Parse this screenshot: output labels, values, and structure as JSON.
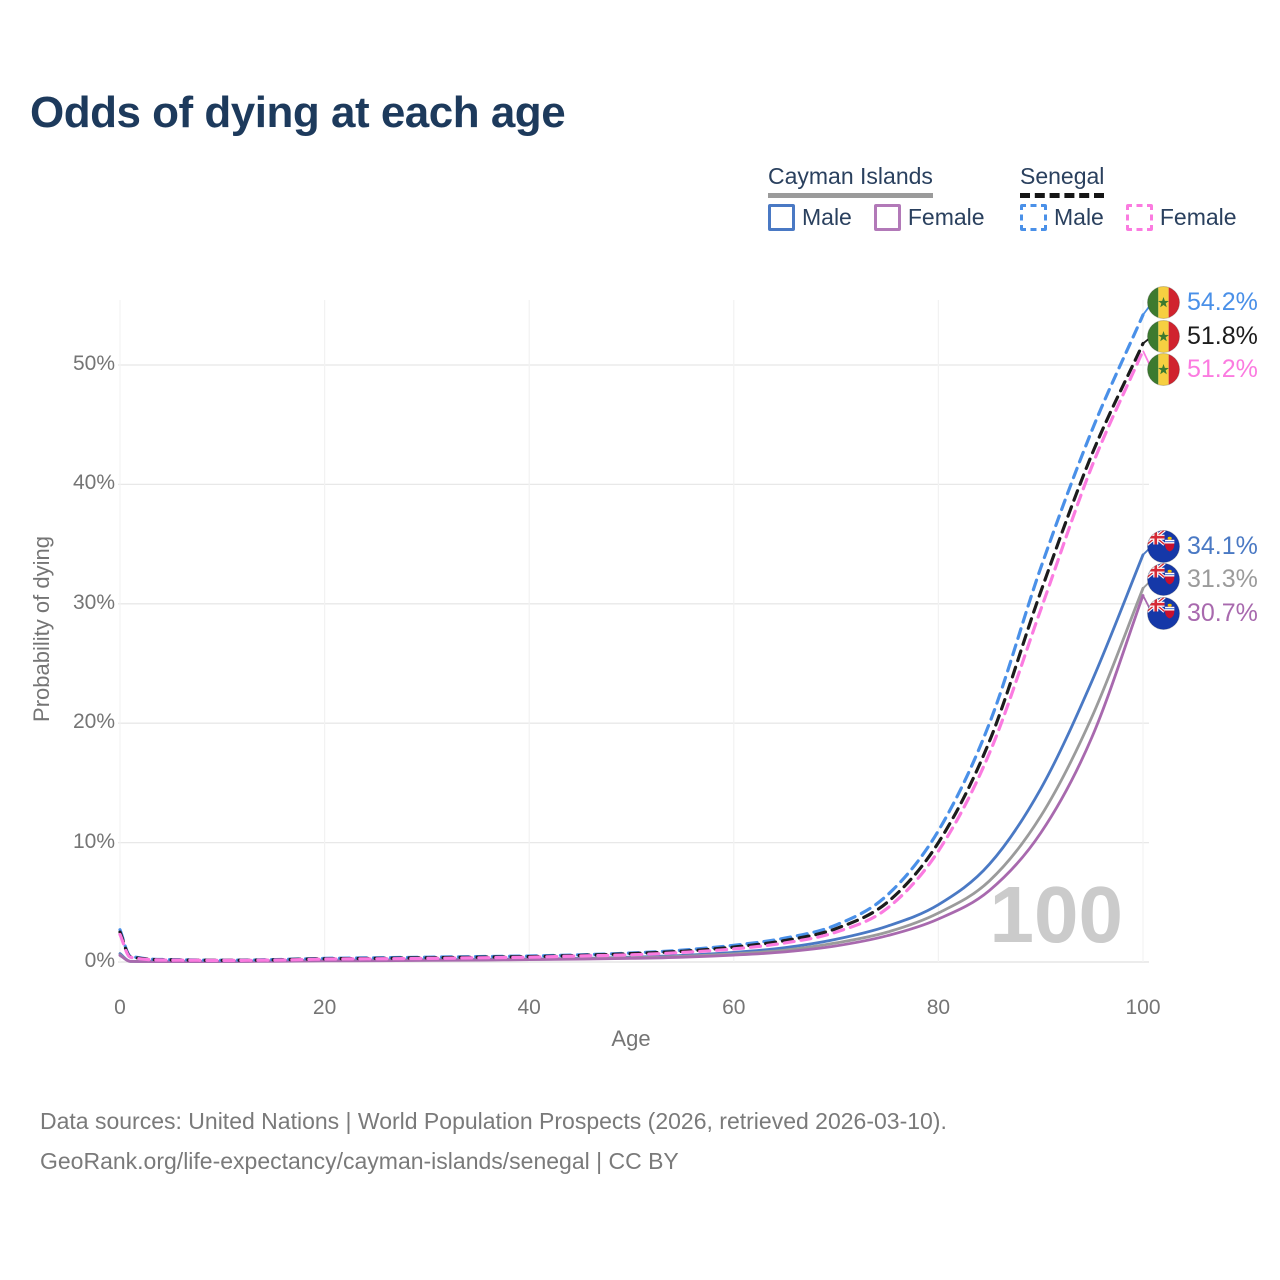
{
  "title": "Odds of dying at each age",
  "legend": {
    "groups": [
      {
        "label": "Cayman Islands",
        "underline": "solid",
        "underline_color": "#9b9b9b",
        "items": [
          {
            "label": "Male",
            "color": "#4a79c4",
            "dash": false
          },
          {
            "label": "Female",
            "color": "#b279b8",
            "dash": false
          }
        ]
      },
      {
        "label": "Senegal",
        "underline": "dashed",
        "underline_color": "#151515",
        "items": [
          {
            "label": "Male",
            "color": "#4a90e8",
            "dash": true
          },
          {
            "label": "Female",
            "color": "#fb7be0",
            "dash": true
          }
        ]
      }
    ]
  },
  "chart_data": {
    "type": "line",
    "title": "Odds of dying at each age",
    "xlabel": "Age",
    "ylabel": "Probability of dying",
    "x_ticks": [
      "0",
      "20",
      "40",
      "60",
      "80",
      "100"
    ],
    "y_ticks": [
      "0%",
      "10%",
      "20%",
      "30%",
      "40%",
      "50%"
    ],
    "xlim": [
      0,
      100
    ],
    "ylim_pct": [
      0,
      55.8
    ],
    "grid": true,
    "watermark": "100",
    "ages": [
      0,
      1,
      5,
      10,
      15,
      20,
      25,
      30,
      35,
      40,
      45,
      50,
      55,
      60,
      65,
      70,
      75,
      80,
      85,
      90,
      95,
      100
    ],
    "series": [
      {
        "name": "Cayman Islands Male",
        "country": "cayman",
        "sex": "male",
        "color": "#4a79c4",
        "dash": false,
        "end_label": "34.1%",
        "values_pct": [
          0.7,
          0.06,
          0.04,
          0.05,
          0.1,
          0.15,
          0.17,
          0.2,
          0.22,
          0.25,
          0.3,
          0.4,
          0.55,
          0.8,
          1.2,
          1.9,
          3.0,
          4.8,
          8.2,
          14.5,
          23.5,
          34.1
        ]
      },
      {
        "name": "Cayman Islands",
        "country": "cayman",
        "sex": "both",
        "color": "#9b9b9b",
        "dash": false,
        "end_label": "31.3%",
        "values_pct": [
          0.6,
          0.05,
          0.04,
          0.04,
          0.08,
          0.12,
          0.14,
          0.16,
          0.18,
          0.22,
          0.27,
          0.35,
          0.48,
          0.68,
          1.0,
          1.6,
          2.5,
          4.1,
          6.8,
          12.2,
          20.5,
          31.3
        ]
      },
      {
        "name": "Cayman Islands Female",
        "country": "cayman",
        "sex": "female",
        "color": "#a869ae",
        "dash": false,
        "end_label": "30.7%",
        "values_pct": [
          0.55,
          0.05,
          0.03,
          0.04,
          0.06,
          0.09,
          0.11,
          0.13,
          0.16,
          0.2,
          0.24,
          0.3,
          0.4,
          0.58,
          0.85,
          1.35,
          2.2,
          3.6,
          6.0,
          10.8,
          18.8,
          30.7
        ]
      },
      {
        "name": "Senegal Male",
        "country": "senegal",
        "sex": "male",
        "color": "#4a90e8",
        "dash": true,
        "end_label": "54.2%",
        "values_pct": [
          2.7,
          0.5,
          0.2,
          0.15,
          0.2,
          0.3,
          0.35,
          0.4,
          0.45,
          0.5,
          0.6,
          0.75,
          1.0,
          1.4,
          2.0,
          3.1,
          5.6,
          11.0,
          20.0,
          33.0,
          44.5,
          54.2
        ]
      },
      {
        "name": "Senegal",
        "country": "senegal",
        "sex": "both",
        "color": "#1c1c1c",
        "dash": true,
        "end_label": "51.8%",
        "values_pct": [
          2.5,
          0.45,
          0.18,
          0.14,
          0.18,
          0.27,
          0.3,
          0.35,
          0.4,
          0.45,
          0.55,
          0.7,
          0.9,
          1.25,
          1.8,
          2.8,
          5.0,
          10.0,
          18.5,
          31.0,
          42.5,
          51.8
        ]
      },
      {
        "name": "Senegal Female",
        "country": "senegal",
        "sex": "female",
        "color": "#fb7be0",
        "dash": true,
        "end_label": "51.2%",
        "values_pct": [
          2.3,
          0.4,
          0.16,
          0.13,
          0.16,
          0.24,
          0.27,
          0.3,
          0.35,
          0.4,
          0.5,
          0.6,
          0.8,
          1.1,
          1.6,
          2.5,
          4.5,
          9.3,
          17.5,
          29.5,
          41.5,
          51.2
        ]
      }
    ]
  },
  "footer": {
    "line1": "Data sources: United Nations | World Population Prospects (2026, retrieved 2026-03-10).",
    "line2": "GeoRank.org/life-expectancy/cayman-islands/senegal | CC BY"
  }
}
